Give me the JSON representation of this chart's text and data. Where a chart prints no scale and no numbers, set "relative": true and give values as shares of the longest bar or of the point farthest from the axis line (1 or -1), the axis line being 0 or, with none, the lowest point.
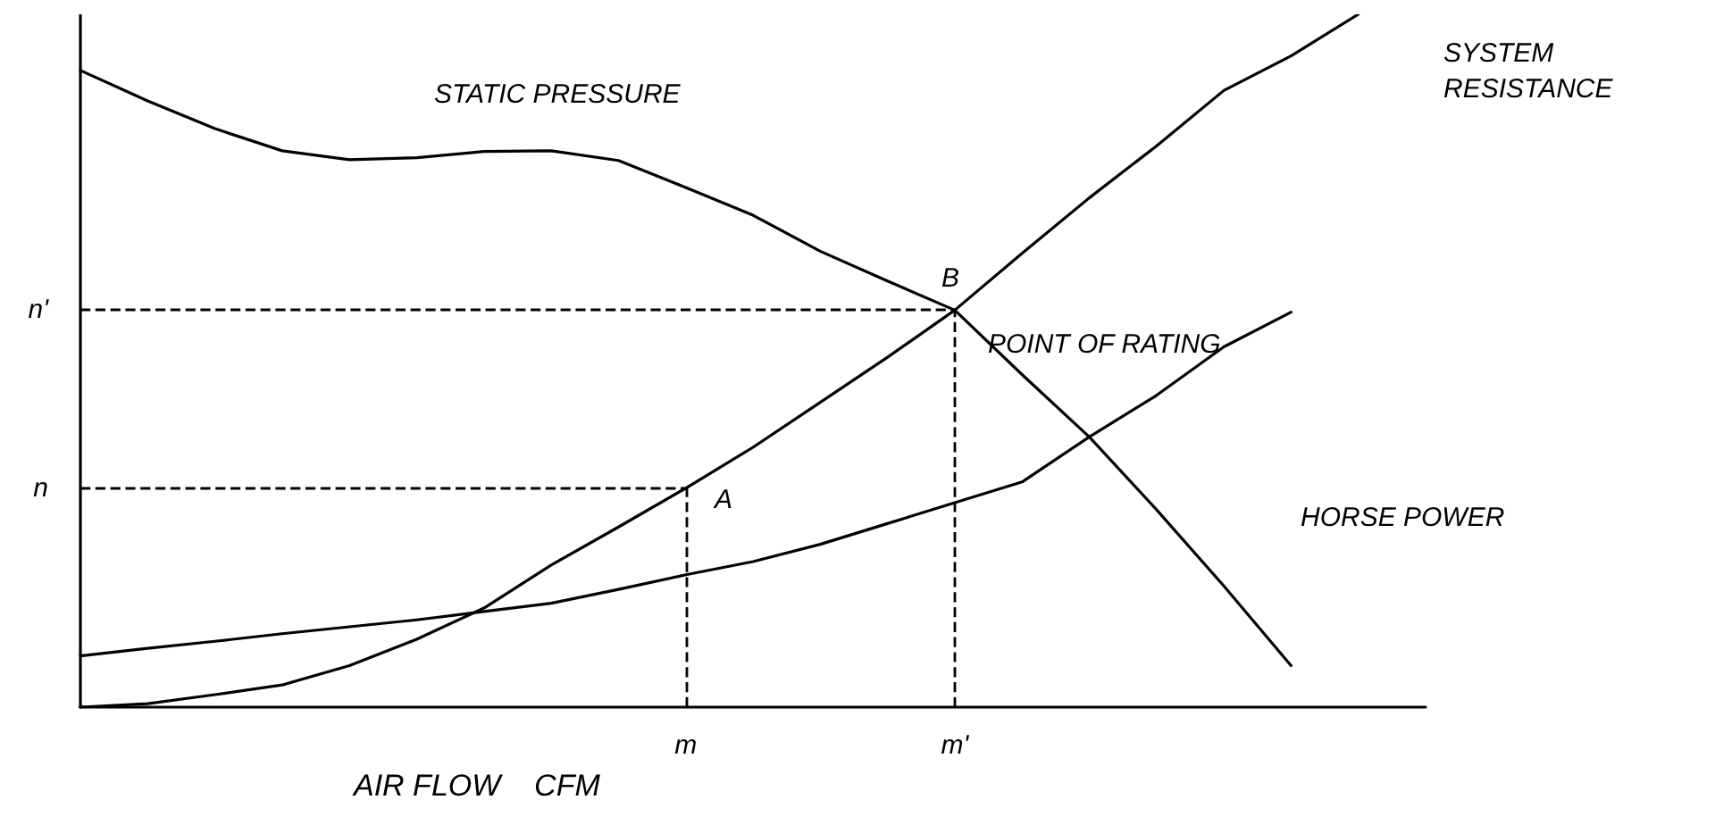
{
  "chart_data": {
    "type": "line",
    "xlabel": "AIR FLOW    CFM",
    "relative": true,
    "categories": [
      null,
      null,
      null,
      null,
      null,
      null,
      null,
      null,
      null,
      "m",
      null,
      null,
      null,
      "m'",
      null,
      null,
      null,
      null,
      null,
      null,
      null
    ],
    "grid": false,
    "marker": "none",
    "line_style": "solid",
    "series": [
      {
        "color": "#000000",
        "values": [
          0.919,
          0.875,
          0.835,
          0.803,
          0.79,
          0.793,
          0.802,
          0.803,
          0.789,
          0.75,
          0.71,
          0.658,
          0.615,
          0.573,
          0.48,
          0.39,
          0.285,
          0.175,
          0.06,
          null,
          null
        ]
      },
      {
        "color": "#000000",
        "values": [
          0,
          0.005,
          0.018,
          0.032,
          0.06,
          0.098,
          0.143,
          0.205,
          0.26,
          0.316,
          0.375,
          0.44,
          0.505,
          0.573,
          0.655,
          0.735,
          0.81,
          0.89,
          0.94,
          1.0,
          null
        ]
      },
      {
        "color": "#000000",
        "values": [
          0.074,
          0.085,
          0.095,
          0.106,
          0.116,
          0.126,
          0.138,
          0.15,
          0.17,
          0.191,
          0.21,
          0.235,
          0.265,
          0.295,
          0.325,
          0.39,
          0.45,
          0.52,
          0.57,
          null,
          null
        ]
      }
    ],
    "ref_lines": [
      {
        "axis": "y",
        "value": 0.316,
        "label": "n",
        "line_style": "dashed",
        "color": "#000000"
      },
      {
        "axis": "y",
        "value": 0.573,
        "label": "n'",
        "line_style": "dashed",
        "color": "#000000"
      },
      {
        "axis": "x",
        "value": "m",
        "line_style": "dashed",
        "color": "#000000"
      },
      {
        "axis": "x",
        "value": "m'",
        "line_style": "dashed",
        "color": "#000000"
      }
    ],
    "annotations": [
      "STATIC PRESSURE",
      "SYSTEM\nRESISTANCE",
      "POINT OF RATING",
      "HORSE POWER",
      "A",
      "B"
    ]
  }
}
